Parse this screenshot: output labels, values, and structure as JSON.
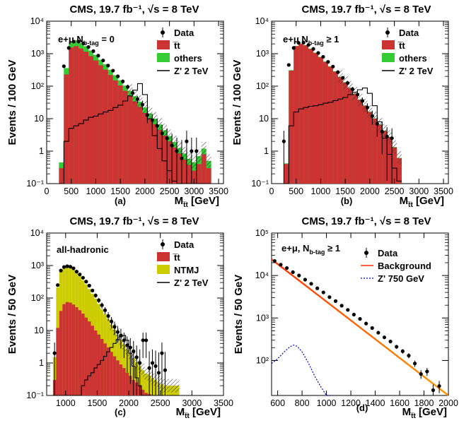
{
  "figure": {
    "caption_labels": [
      "(a)",
      "(b)",
      "(c)",
      "(d)"
    ]
  },
  "chart_data": [
    {
      "id": "a",
      "type": "histogram",
      "header": "CMS, 19.7 fb⁻¹, √s = 8 TeV",
      "category_label": "e+μ N_b-tag = 0",
      "category_main": "e+μ N",
      "category_sub": "b-tag",
      "category_tail": " = 0",
      "xlabel_main": "M",
      "xlabel_sub": "t̅t",
      "xlabel_unit": " [GeV]",
      "ylabel": "Events / 100 GeV",
      "yscale": "log",
      "xlim": [
        0,
        3600
      ],
      "ylim": [
        0.1,
        10000
      ],
      "xticks": [
        0,
        500,
        1000,
        1500,
        2000,
        2500,
        3000,
        3500
      ],
      "yticks": [
        0.1,
        1,
        10,
        100,
        1000,
        10000
      ],
      "ytick_labels": [
        "10⁻¹",
        "1",
        "10",
        "10²",
        "10³",
        "10⁴"
      ],
      "legend": [
        {
          "label": "Data",
          "kind": "marker"
        },
        {
          "label": "t̅t",
          "kind": "fill",
          "color": "#cc3333"
        },
        {
          "label": "others",
          "kind": "fill",
          "color": "#33cc33"
        },
        {
          "label": "Z' 2 TeV",
          "kind": "line",
          "color": "#000000"
        }
      ],
      "bin_width": 100,
      "bin_edges_start": 250,
      "stack": [
        {
          "name": "t̅t",
          "color": "#cc3333",
          "values": [
            0.3,
            230,
            1550,
            1700,
            1450,
            1150,
            840,
            620,
            440,
            320,
            220,
            150,
            105,
            72,
            50,
            34,
            23,
            15,
            10,
            6.8,
            4.5,
            3.0,
            2.0,
            1.3,
            0.85,
            0.55,
            0.38,
            0.25,
            0.4,
            0.8,
            0.3
          ]
        },
        {
          "name": "others",
          "color": "#33cc33",
          "values": [
            0.15,
            130,
            800,
            880,
            720,
            560,
            410,
            300,
            210,
            150,
            100,
            68,
            48,
            32,
            22,
            15,
            10,
            7,
            4.5,
            3.2,
            2.1,
            1.4,
            0.9,
            0.6,
            0.4,
            0.3,
            0.2,
            0.2,
            0.3,
            0.4,
            0.2
          ]
        }
      ],
      "signal": {
        "name": "Z' 2 TeV",
        "values": [
          0.1,
          2,
          5,
          6,
          7,
          9,
          11,
          12,
          14,
          16,
          18,
          22,
          26,
          35,
          50,
          75,
          120,
          55,
          10,
          3,
          1.2,
          0.5,
          0.25,
          0.12,
          0.1,
          0.1,
          0.1,
          0.1,
          0.1,
          0.1,
          0.1
        ]
      },
      "data_points": {
        "x": [
          350,
          450,
          550,
          650,
          750,
          850,
          950,
          1050,
          1150,
          1250,
          1350,
          1450,
          1550,
          1650,
          1750,
          1850,
          1950,
          2050,
          2150,
          2250,
          2350,
          2450,
          2550,
          2650,
          2750,
          2850,
          2950,
          3050
        ],
        "y": [
          410,
          1500,
          2350,
          2350,
          2050,
          1600,
          1200,
          870,
          620,
          430,
          300,
          200,
          140,
          95,
          62,
          40,
          27,
          13,
          9,
          6,
          3.5,
          2.5,
          1.5,
          1,
          0.6,
          2,
          1,
          1
        ]
      }
    },
    {
      "id": "b",
      "type": "histogram",
      "header": "CMS, 19.7 fb⁻¹, √s = 8 TeV",
      "category_label": "e+μ N_b-tag ≥ 1",
      "category_main": "e+μ N",
      "category_sub": "b-tag",
      "category_tail": " ≥ 1",
      "xlabel_main": "M",
      "xlabel_sub": "t̅t",
      "xlabel_unit": " [GeV]",
      "ylabel": "Events / 100 GeV",
      "yscale": "log",
      "xlim": [
        0,
        3600
      ],
      "ylim": [
        0.1,
        10000
      ],
      "xticks": [
        0,
        500,
        1000,
        1500,
        2000,
        2500,
        3000,
        3500
      ],
      "yticks": [
        0.1,
        1,
        10,
        100,
        1000,
        10000
      ],
      "ytick_labels": [
        "10⁻¹",
        "1",
        "10",
        "10²",
        "10³",
        "10⁴"
      ],
      "legend": [
        {
          "label": "Data",
          "kind": "marker"
        },
        {
          "label": "t̅t",
          "kind": "fill",
          "color": "#cc3333"
        },
        {
          "label": "others",
          "kind": "fill",
          "color": "#33cc33"
        },
        {
          "label": "Z' 2 TeV",
          "kind": "line",
          "color": "#000000"
        }
      ],
      "bin_width": 100,
      "bin_edges_start": 250,
      "stack": [
        {
          "name": "t̅t",
          "color": "#cc3333",
          "values": [
            0.4,
            300,
            1700,
            2000,
            1800,
            1400,
            1050,
            780,
            560,
            400,
            280,
            190,
            130,
            88,
            58,
            38,
            25,
            16,
            10,
            6.5,
            4.2,
            2.7,
            1.3,
            0.6
          ]
        },
        {
          "name": "others",
          "color": "#33cc33",
          "values": [
            0.02,
            10,
            40,
            45,
            40,
            32,
            24,
            18,
            13,
            9,
            6,
            4,
            3,
            2,
            1.3,
            0.9,
            0.6,
            0.4,
            0.25,
            0.15,
            0.1,
            0.07,
            0.04,
            0.02
          ]
        }
      ],
      "signal": {
        "name": "Z' 2 TeV",
        "values": [
          0.1,
          6,
          16,
          20,
          22,
          24,
          25,
          27,
          30,
          32,
          36,
          40,
          45,
          55,
          65,
          78,
          88,
          60,
          25,
          8,
          2.5,
          0.8,
          0.3,
          0.12
        ]
      },
      "data_points": {
        "x": [
          250,
          350,
          450,
          550,
          650,
          750,
          850,
          950,
          1050,
          1150,
          1250,
          1350,
          1450,
          1550,
          1650,
          1750,
          1850,
          1950,
          2050,
          2150,
          2250,
          2350,
          2450
        ],
        "y": [
          2,
          450,
          1500,
          2150,
          2200,
          1850,
          1400,
          1050,
          800,
          560,
          400,
          270,
          180,
          125,
          80,
          55,
          35,
          22,
          12,
          7,
          4,
          2.8,
          2.5
        ]
      }
    },
    {
      "id": "c",
      "type": "histogram",
      "header": "CMS, 19.7 fb⁻¹, √s = 8 TeV",
      "category_label": "all-hadronic",
      "category_main": "all-hadronic",
      "category_sub": "",
      "category_tail": "",
      "xlabel_main": "M",
      "xlabel_sub": "t̅t",
      "xlabel_unit": " [GeV]",
      "ylabel": "Events / 50 GeV",
      "yscale": "log",
      "xlim": [
        700,
        3500
      ],
      "ylim": [
        0.1,
        10000
      ],
      "xticks": [
        1000,
        1500,
        2000,
        2500,
        3000,
        3500
      ],
      "yticks": [
        0.1,
        1,
        10,
        100,
        1000,
        10000
      ],
      "ytick_labels": [
        "10⁻¹",
        "1",
        "10",
        "10²",
        "10³",
        "10⁴"
      ],
      "legend": [
        {
          "label": "Data",
          "kind": "marker"
        },
        {
          "label": "t̅t",
          "kind": "fill",
          "color": "#cc3333"
        },
        {
          "label": "NTMJ",
          "kind": "fill",
          "color": "#cccc00"
        },
        {
          "label": "Z' 2 TeV",
          "kind": "line",
          "color": "#000000"
        }
      ],
      "bin_width": 50,
      "bin_edges_start": 800,
      "stack": [
        {
          "name": "t̅t",
          "color": "#cc3333",
          "values": [
            0.3,
            12,
            40,
            65,
            75,
            72,
            63,
            52,
            42,
            33,
            25,
            19,
            14,
            10,
            7.5,
            5.5,
            4,
            3,
            2.2,
            1.6,
            1.2,
            0.9,
            0.7,
            0.5,
            0.4,
            0.3,
            0.25,
            0.2,
            0.15,
            0.12,
            0.11,
            0.1,
            0.1,
            0.1,
            0.1,
            0.1,
            0.1,
            0.1,
            0.1,
            0.1
          ]
        },
        {
          "name": "NTMJ",
          "color": "#cccc00",
          "values": [
            1.2,
            200,
            600,
            850,
            870,
            800,
            680,
            550,
            430,
            320,
            240,
            170,
            120,
            85,
            58,
            40,
            28,
            19,
            13,
            9,
            6.3,
            4.3,
            3,
            2.1,
            1.5,
            1.1,
            0.8,
            0.6,
            0.45,
            0.35,
            0.3,
            0.25,
            0.2,
            0.15,
            0.12,
            0.1,
            0.1,
            0.1,
            0.1,
            0.1
          ]
        }
      ],
      "signal": {
        "name": "Z' 2 TeV",
        "values": [
          0.1,
          0.1,
          0.1,
          0.1,
          0.1,
          0.1,
          0.1,
          0.1,
          0.1,
          0.2,
          0.3,
          0.4,
          0.5,
          0.7,
          0.9,
          1.2,
          1.6,
          2.2,
          3,
          4,
          5.2,
          6.5,
          7,
          5,
          2,
          0.8,
          0.35,
          0.2,
          0.1,
          0.1,
          0.1,
          0.1,
          0.1,
          0.1,
          0.1,
          0.1,
          0.1,
          0.1,
          0.1,
          0.1
        ]
      },
      "data_points": {
        "x": [
          825,
          875,
          925,
          975,
          1025,
          1075,
          1125,
          1175,
          1225,
          1275,
          1325,
          1375,
          1425,
          1475,
          1525,
          1575,
          1625,
          1675,
          1725,
          1775,
          1825,
          1875,
          1925,
          1975,
          2025,
          2075,
          2125,
          2175,
          2225,
          2275,
          2325,
          2375,
          2425,
          2475,
          2525,
          2575
        ],
        "y": [
          2,
          250,
          700,
          900,
          950,
          920,
          820,
          650,
          530,
          420,
          320,
          240,
          170,
          120,
          85,
          60,
          42,
          28,
          19,
          13,
          9,
          7,
          5,
          3.5,
          3,
          2.3,
          1.5,
          1,
          5,
          5,
          0.7,
          1,
          0.8,
          0.5,
          2,
          0.6
        ]
      }
    },
    {
      "id": "d",
      "type": "scatter_with_fit",
      "header": "CMS, 19.7 fb⁻¹, √s = 8 TeV",
      "category_label": "e+μ, N_b-tag ≥ 1",
      "category_main": "e+μ, N",
      "category_sub": "b-tag",
      "category_tail": " ≥ 1",
      "xlabel_main": "M",
      "xlabel_sub": "t̅t",
      "xlabel_unit": " [GeV]",
      "ylabel": "Events / 50 GeV",
      "yscale": "log",
      "xlim": [
        550,
        2000
      ],
      "ylim": [
        15,
        100000
      ],
      "xticks": [
        600,
        800,
        1000,
        1200,
        1400,
        1600,
        1800,
        2000
      ],
      "yticks": [
        100,
        1000,
        10000,
        100000
      ],
      "ytick_labels": [
        "10²",
        "10³",
        "10⁴",
        "10⁵"
      ],
      "legend": [
        {
          "label": "Data",
          "kind": "marker"
        },
        {
          "label": "Background",
          "kind": "line",
          "color": "#ff3300"
        },
        {
          "label": "Z' 750 GeV",
          "kind": "dotted",
          "color": "#0000cc"
        }
      ],
      "background_fit": {
        "x": [
          550,
          2000
        ],
        "y": [
          24000,
          14
        ],
        "color_a": "#ff3300",
        "color_b": "#ffaa00"
      },
      "signal_curve": {
        "name": "Z' 750 GeV",
        "x": [
          550,
          600,
          650,
          700,
          730,
          760,
          800,
          850,
          900,
          950,
          1000,
          1050
        ],
        "y": [
          85,
          110,
          155,
          210,
          230,
          215,
          160,
          90,
          45,
          25,
          15,
          10
        ]
      },
      "data_points": {
        "x": [
          575,
          625,
          675,
          725,
          775,
          825,
          875,
          925,
          975,
          1025,
          1075,
          1125,
          1175,
          1225,
          1275,
          1325,
          1375,
          1425,
          1475,
          1525,
          1575,
          1625,
          1675,
          1725,
          1775,
          1825,
          1875,
          1925
        ],
        "y": [
          22000,
          18000,
          15000,
          12000,
          10000,
          8000,
          6400,
          5000,
          4000,
          3100,
          2500,
          1950,
          1550,
          1200,
          950,
          740,
          580,
          450,
          350,
          280,
          210,
          165,
          130,
          85,
          48,
          55,
          20,
          25
        ]
      }
    }
  ]
}
